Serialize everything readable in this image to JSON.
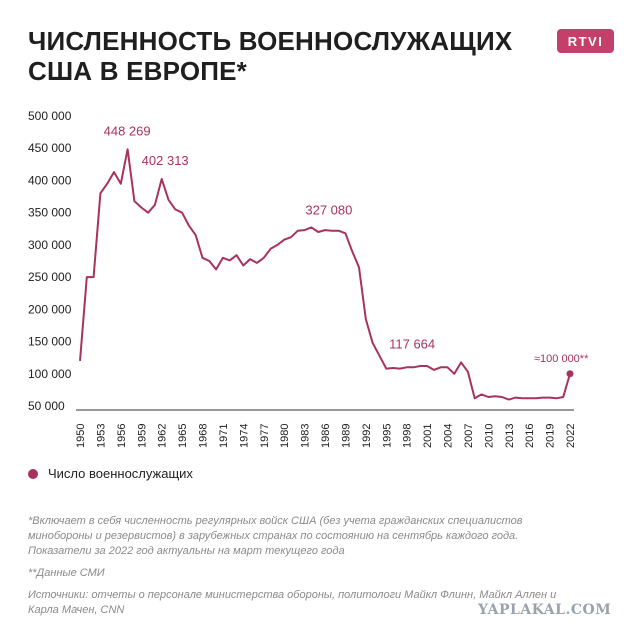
{
  "title_line1": "ЧИСЛЕННОСТЬ ВОЕННОСЛУЖАЩИХ",
  "title_line2": "США В ЕВРОПЕ*",
  "logo_text": "RTVI",
  "legend_label": "Число военнослужащих",
  "footnote": "*Включает в себя численность регулярных войск США (без учета гражданских специалистов минобороны и резервистов) в зарубежных странах по состоянию на сентябрь каждого года. Показатели за 2022 год актуальны на март текущего года",
  "media_note": "**Данные СМИ",
  "sources": "Источники: отчеты о персонале министерства обороны, политологи Майкл Флинн, Майкл Аллен и Карла Мачен, CNN",
  "watermark": "YAPLAKAL.COM",
  "colors": {
    "line": "#a8325f",
    "logo": "#c4406a"
  },
  "chart_data": {
    "type": "line",
    "title": "ЧИСЛЕННОСТЬ ВОЕННОСЛУЖАЩИХ США В ЕВРОПЕ*",
    "ylim": [
      50000,
      500000
    ],
    "yticks": [
      50000,
      100000,
      150000,
      200000,
      250000,
      300000,
      350000,
      400000,
      450000,
      500000
    ],
    "ytick_labels": [
      "50 000",
      "100 000",
      "150 000",
      "200 000",
      "250 000",
      "300 000",
      "350 000",
      "400 000",
      "450 000",
      "500 000"
    ],
    "xlim": [
      1950,
      2022
    ],
    "xticks": [
      1950,
      1953,
      1956,
      1959,
      1962,
      1965,
      1968,
      1971,
      1974,
      1977,
      1980,
      1983,
      1986,
      1989,
      1992,
      1995,
      1998,
      2001,
      2004,
      2007,
      2010,
      2013,
      2016,
      2019,
      2022
    ],
    "grid": false,
    "legend": "bottom-left",
    "series": [
      {
        "name": "Число военнослужащих",
        "x": [
          1950,
          1951,
          1952,
          1953,
          1954,
          1955,
          1956,
          1957,
          1958,
          1959,
          1960,
          1961,
          1962,
          1963,
          1964,
          1965,
          1966,
          1967,
          1968,
          1969,
          1970,
          1971,
          1972,
          1973,
          1974,
          1975,
          1976,
          1977,
          1978,
          1979,
          1980,
          1981,
          1982,
          1983,
          1984,
          1985,
          1986,
          1987,
          1988,
          1989,
          1990,
          1991,
          1992,
          1993,
          1994,
          1995,
          1996,
          1997,
          1998,
          1999,
          2000,
          2001,
          2002,
          2003,
          2004,
          2005,
          2006,
          2007,
          2008,
          2009,
          2010,
          2011,
          2012,
          2013,
          2014,
          2015,
          2016,
          2017,
          2018,
          2019,
          2020,
          2021
        ],
        "y": [
          120000,
          250000,
          250000,
          380000,
          395000,
          413000,
          395000,
          448269,
          368000,
          358000,
          350000,
          362000,
          402313,
          370000,
          355000,
          350000,
          330000,
          315000,
          280000,
          275000,
          262000,
          280000,
          276000,
          284000,
          268000,
          278000,
          272000,
          280000,
          294000,
          300000,
          308000,
          312000,
          322000,
          323000,
          327080,
          320000,
          323000,
          322000,
          322000,
          318000,
          290000,
          265000,
          185000,
          148000,
          128000,
          108000,
          109000,
          108000,
          110000,
          110000,
          112000,
          112000,
          106000,
          110000,
          110000,
          100000,
          117664,
          103000,
          62000,
          68000,
          64000,
          65000,
          64000,
          60000,
          63000,
          62000,
          62000,
          62000,
          63000,
          63000,
          62000,
          64000
        ]
      },
      {
        "name": "2022",
        "x": [
          2022
        ],
        "y": [
          100000
        ]
      }
    ],
    "annotations": [
      {
        "x": 1957,
        "y": 448269,
        "text": "448 269"
      },
      {
        "x": 1962,
        "y": 402313,
        "text": "402 313"
      },
      {
        "x": 1984,
        "y": 327080,
        "text": "327 080"
      },
      {
        "x": 2006,
        "y": 117664,
        "text": "117 664"
      },
      {
        "x": 2022,
        "y": 100000,
        "text": "≈100 000**"
      }
    ]
  }
}
